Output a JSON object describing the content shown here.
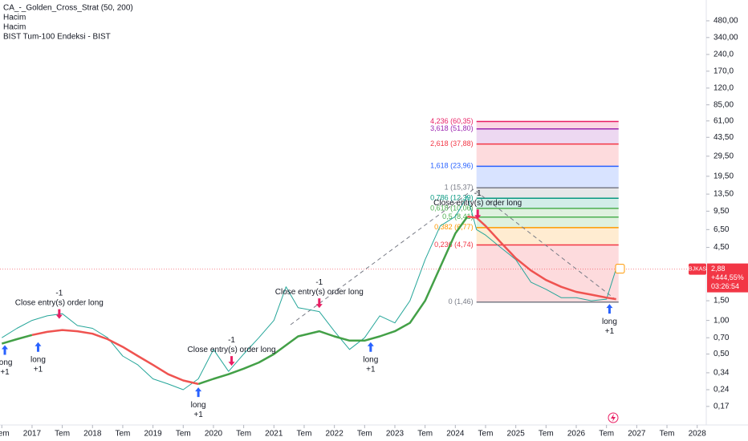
{
  "chart_data": {
    "type": "line",
    "legend_lines": [
      "CA_-_Golden_Cross_Strat (50, 200)",
      "Hacim",
      "Hacim",
      "BIST Tum-100 Endeksi - BIST"
    ],
    "log_scale": true,
    "xlim": [
      2016.47,
      2028.15
    ],
    "ylim": [
      0.116,
      737
    ],
    "xticks": [
      {
        "value": 2016.5,
        "label": "Tem"
      },
      2017,
      {
        "value": 2017.5,
        "label": "Tem"
      },
      2018,
      {
        "value": 2018.5,
        "label": "Tem"
      },
      2019,
      {
        "value": 2019.5,
        "label": "Tem"
      },
      2020,
      {
        "value": 2020.5,
        "label": "Tem"
      },
      2021,
      {
        "value": 2021.5,
        "label": "Tem"
      },
      2022,
      {
        "value": 2022.5,
        "label": "Tem"
      },
      2023,
      {
        "value": 2023.5,
        "label": "Tem"
      },
      2024,
      {
        "value": 2024.5,
        "label": "Tem"
      },
      2025,
      {
        "value": 2025.5,
        "label": "Tem"
      },
      2026,
      {
        "value": 2026.5,
        "label": "Tem"
      },
      2027,
      {
        "value": 2027.5,
        "label": "Tem"
      },
      2028
    ],
    "yticks": [
      {
        "value": 480,
        "label": "480,00"
      },
      {
        "value": 340,
        "label": "340,00"
      },
      {
        "value": 240,
        "label": "240,0"
      },
      {
        "value": 170,
        "label": "170,0"
      },
      {
        "value": 120,
        "label": "120,0"
      },
      {
        "value": 85,
        "label": "85,00"
      },
      {
        "value": 61,
        "label": "61,00"
      },
      {
        "value": 43.5,
        "label": "43,50"
      },
      {
        "value": 29.5,
        "label": "29,50"
      },
      {
        "value": 19.5,
        "label": "19,50"
      },
      {
        "value": 13.5,
        "label": "13,50"
      },
      {
        "value": 9.5,
        "label": "9,50"
      },
      {
        "value": 6.5,
        "label": "6,50"
      },
      {
        "value": 4.5,
        "label": "4,50"
      },
      {
        "value": 1.5,
        "label": "1,50"
      },
      {
        "value": 1.0,
        "label": "1,00"
      },
      {
        "value": 0.7,
        "label": "0,70"
      },
      {
        "value": 0.5,
        "label": "0,50"
      },
      {
        "value": 0.34,
        "label": "0,34"
      },
      {
        "value": 0.24,
        "label": "0,24"
      },
      {
        "value": 0.17,
        "label": "0,17"
      }
    ],
    "x": [
      2016.5,
      2016.75,
      2017.0,
      2017.25,
      2017.5,
      2017.75,
      2018.0,
      2018.25,
      2018.5,
      2018.75,
      2019.0,
      2019.25,
      2019.5,
      2019.75,
      2020.0,
      2020.25,
      2020.5,
      2020.75,
      2021.0,
      2021.2,
      2021.4,
      2021.75,
      2022.0,
      2022.25,
      2022.5,
      2022.75,
      2023.0,
      2023.25,
      2023.5,
      2023.75,
      2024.0,
      2024.2,
      2024.35,
      2024.5,
      2024.75,
      2025.0,
      2025.25,
      2025.5,
      2025.75,
      2026.0,
      2026.25,
      2026.5,
      2026.66
    ],
    "series": [
      {
        "color": "#26a69a",
        "width": 1,
        "values": [
          0.7,
          0.85,
          1.0,
          1.1,
          1.15,
          0.9,
          0.85,
          0.7,
          0.48,
          0.4,
          0.3,
          0.27,
          0.24,
          0.3,
          0.55,
          0.35,
          0.5,
          0.7,
          1.0,
          2.0,
          1.3,
          1.2,
          0.8,
          0.55,
          0.7,
          1.1,
          0.95,
          1.5,
          3.5,
          7.0,
          8.5,
          13.0,
          6.5,
          5.8,
          4.5,
          3.5,
          2.2,
          1.9,
          1.6,
          1.6,
          1.5,
          1.55,
          2.9
        ]
      },
      {
        "color": "#43a047",
        "width": 2.5,
        "values": [
          0.62,
          0.68,
          0.74,
          null,
          null,
          null,
          null,
          null,
          null,
          null,
          null,
          null,
          null,
          0.27,
          0.3,
          0.33,
          0.37,
          0.42,
          0.5,
          0.6,
          0.72,
          0.8,
          0.72,
          0.66,
          0.66,
          0.72,
          0.8,
          0.95,
          1.5,
          3.0,
          6.0,
          8.5,
          null,
          null,
          null,
          null,
          null,
          null,
          null,
          null,
          null,
          null,
          null
        ]
      },
      {
        "color": "#ef5350",
        "width": 2.5,
        "values": [
          null,
          null,
          0.74,
          0.79,
          0.82,
          0.8,
          0.76,
          0.68,
          0.58,
          0.48,
          0.4,
          0.33,
          0.29,
          0.27,
          null,
          null,
          null,
          null,
          null,
          null,
          null,
          null,
          null,
          null,
          null,
          null,
          null,
          null,
          null,
          null,
          null,
          8.5,
          8.3,
          7.0,
          5.0,
          3.6,
          2.8,
          2.3,
          2.0,
          1.8,
          1.7,
          1.6,
          1.55
        ]
      }
    ],
    "fib": {
      "x": [
        2024.35,
        2026.7
      ],
      "levels": [
        {
          "value": 60.35,
          "label": "4,236 (60,35)",
          "color": "#e91e63"
        },
        {
          "value": 51.8,
          "label": "3,618 (51,80)",
          "color": "#9c27b0"
        },
        {
          "value": 37.88,
          "label": "2,618 (37,88)",
          "color": "#f23645"
        },
        {
          "value": 23.96,
          "label": "1,618 (23,96)",
          "color": "#2962ff"
        },
        {
          "value": 15.37,
          "label": "1 (15,37)",
          "color": "#787b86"
        },
        {
          "value": 12.39,
          "label": "0,786 (12,39)",
          "color": "#089981"
        },
        {
          "value": 10.06,
          "label": "0,618 (10,06)",
          "color": "#4caf50"
        },
        {
          "value": 8.41,
          "label": "0,5 (8,41)",
          "color": "#4caf50"
        },
        {
          "value": 6.77,
          "label": "0,382 (6,77)",
          "color": "#ff9800"
        },
        {
          "value": 4.74,
          "label": "0,236 (4,74)",
          "color": "#f23645"
        },
        {
          "value": 1.46,
          "label": "0 (1,46)",
          "color": "#787b86"
        }
      ]
    },
    "signals": [
      {
        "x": 2016.55,
        "price": 0.62,
        "label": "long",
        "qty": "+1"
      },
      {
        "x": 2017.1,
        "price": 0.66,
        "label": "long",
        "qty": "+1"
      },
      {
        "x": 2019.75,
        "price": 0.26,
        "label": "long",
        "qty": "+1"
      },
      {
        "x": 2022.6,
        "price": 0.66,
        "label": "long",
        "qty": "+1"
      },
      {
        "x": 2026.55,
        "price": 1.45,
        "label": "long",
        "qty": "+1"
      },
      {
        "x": 2017.45,
        "price": 1.0,
        "label": "Close entry(s) order long",
        "qty": "-1"
      },
      {
        "x": 2020.3,
        "price": 0.38,
        "label": "Close entry(s) order long",
        "qty": "-1"
      },
      {
        "x": 2021.75,
        "price": 1.25,
        "label": "Close entry(s) order long",
        "qty": "-1"
      },
      {
        "x": 2024.37,
        "price": 7.8,
        "label": "Close entry(s) order long",
        "qty": "-1"
      }
    ],
    "last": {
      "symbol": "BJKAS",
      "value": 2.88,
      "value_label": "2,88",
      "change": "+444,55%",
      "countdown": "03:26:54",
      "color": "#f23645"
    }
  }
}
